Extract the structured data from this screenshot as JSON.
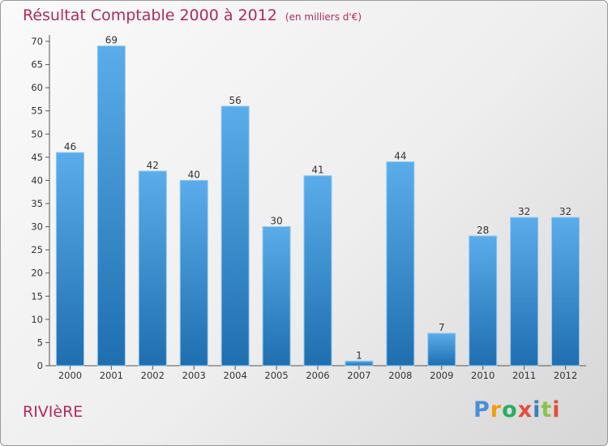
{
  "header": {
    "title": "Résultat Comptable 2000 à 2012",
    "unit": "(en milliers d'€)"
  },
  "footer": {
    "commune": "RIVIèRE",
    "brand": [
      "P",
      "r",
      "o",
      "x",
      "i",
      "t",
      "i"
    ]
  },
  "colors": {
    "title": "#b32a5a",
    "bar_light": "#5aacea",
    "bar_dark": "#1f6fb0",
    "brand": [
      "#4a8fd4",
      "#f39c12",
      "#27ae60",
      "#e74c3c",
      "#3a7fc0",
      "#8bc34a",
      "#e74c3c"
    ]
  },
  "chart_data": {
    "type": "bar",
    "title": "Résultat Comptable 2000 à 2012",
    "subtitle": "(en milliers d'€)",
    "xlabel": "",
    "ylabel": "",
    "categories": [
      "2000",
      "2001",
      "2002",
      "2003",
      "2004",
      "2005",
      "2006",
      "2007",
      "2008",
      "2009",
      "2010",
      "2011",
      "2012"
    ],
    "values": [
      46,
      69,
      42,
      40,
      56,
      30,
      41,
      1,
      44,
      7,
      28,
      32,
      32
    ],
    "ylim": [
      0,
      70
    ],
    "yticks": [
      0,
      5,
      10,
      15,
      20,
      25,
      30,
      35,
      40,
      45,
      50,
      55,
      60,
      65,
      70
    ],
    "grid": false,
    "legend": "none"
  }
}
